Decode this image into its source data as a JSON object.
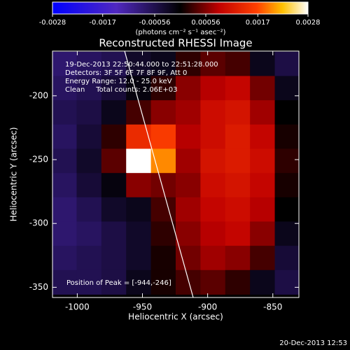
{
  "chart_data": {
    "type": "heatmap",
    "title": "Reconstructed RHESSI Image",
    "x_label": "Heliocentric X (arcsec)",
    "y_label": "Heliocentric Y (arcsec)",
    "annotations": [
      "19-Dec-2013 22:50:44.000 to 22:51:28.000",
      "Detectors: 3F 5F 6F 7F 8F 9F, Att 0",
      "Energy Range: 12.0 - 25.0 keV",
      "Clean     Total counts: 2.06E+03"
    ],
    "peak_label": "Position of Peak = [-944,-246]",
    "timestamp": "20-Dec-2013 12:53",
    "colorbar": {
      "label": "(photons cm⁻² s⁻¹ asec⁻²)",
      "lim": [
        -0.0028,
        0.0028
      ],
      "ticks": [
        -0.0028,
        -0.0017,
        -0.00056,
        0.00056,
        0.0017,
        0.0028
      ]
    },
    "xlim": [
      -1019,
      -830
    ],
    "ylim": [
      -358,
      -165
    ],
    "xticks": [
      -1000,
      -950,
      -900,
      -850
    ],
    "yticks": [
      -200,
      -250,
      -300,
      -350
    ],
    "x": [
      -1010,
      -991,
      -972,
      -953,
      -934,
      -915,
      -896,
      -877,
      -858,
      -839
    ],
    "y": [
      -175,
      -194,
      -213,
      -232,
      -251,
      -270,
      -289,
      -308,
      -327,
      -346
    ],
    "values": [
      [
        -0.0008,
        -0.0007,
        -0.0006,
        -0.0003,
        -0.0002,
        0.0002,
        0.0004,
        0.0003,
        -0.0002,
        -0.0005
      ],
      [
        -0.0007,
        -0.0006,
        -0.0004,
        -0.0001,
        0.0002,
        0.0006,
        0.0008,
        0.0009,
        0.0005,
        -0.0002
      ],
      [
        -0.0006,
        -0.0005,
        -0.0002,
        0.0003,
        0.0006,
        0.0007,
        0.001,
        0.0011,
        0.0007,
        0
      ],
      [
        -0.0007,
        -0.0004,
        0.0002,
        0.0014,
        0.0016,
        0.0008,
        0.001,
        0.0012,
        0.0009,
        0.0001
      ],
      [
        -0.0006,
        -0.0003,
        0.0004,
        0.0028,
        0.002,
        0.0007,
        0.0011,
        0.0012,
        0.001,
        0.0002
      ],
      [
        -0.0007,
        -0.0004,
        -0.0001,
        0.0006,
        0.0005,
        0.0006,
        0.001,
        0.0011,
        0.0009,
        0.0001
      ],
      [
        -0.0008,
        -0.0006,
        -0.0003,
        -0.0002,
        0.0003,
        0.0007,
        0.0009,
        0.001,
        0.0008,
        0
      ],
      [
        -0.0008,
        -0.0007,
        -0.0005,
        -0.0003,
        0.0002,
        0.0006,
        0.0008,
        0.0009,
        0.0006,
        -0.0002
      ],
      [
        -0.0007,
        -0.0006,
        -0.0005,
        -0.0003,
        0.0001,
        0.0005,
        0.0007,
        0.0006,
        0.0003,
        -0.0004
      ],
      [
        -0.0006,
        -0.0006,
        -0.0005,
        -0.0002,
        0.0001,
        0.0003,
        0.0004,
        0.0002,
        -0.0002,
        -0.0005
      ]
    ]
  }
}
